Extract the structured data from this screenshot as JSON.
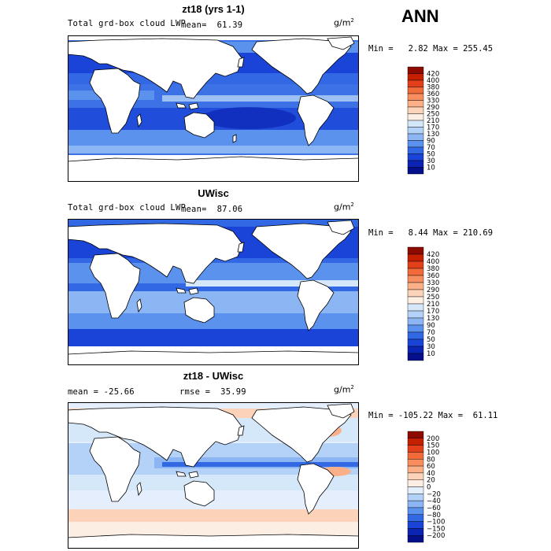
{
  "season": "ANN",
  "units": {
    "base": "g/m",
    "exp": "2"
  },
  "panels": [
    {
      "id": "model",
      "title": "zt18 (yrs 1-1)",
      "left_text": "Total grd-box cloud LWP",
      "mean_text": "mean=  61.39",
      "minmax_text": "Min =   2.82 Max = 255.45",
      "levels": [
        "420",
        "400",
        "380",
        "360",
        "330",
        "290",
        "250",
        "210",
        "170",
        "130",
        "90",
        "70",
        "50",
        "30",
        "10"
      ],
      "colors": [
        "#8c0a00",
        "#c42000",
        "#e2401a",
        "#f06a3a",
        "#f88e60",
        "#fbb08a",
        "#fcd2b8",
        "#fdeee4",
        "#d4e8fa",
        "#b4d2f7",
        "#8bb6f3",
        "#5b92ee",
        "#3368e5",
        "#1a44d8",
        "#0c24b4",
        "#04108a"
      ]
    },
    {
      "id": "obs",
      "title": "UWisc",
      "left_text": "Total grd-box cloud LWP",
      "mean_text": "mean=  87.06",
      "minmax_text": "Min =   8.44 Max = 210.69",
      "levels": [
        "420",
        "400",
        "380",
        "360",
        "330",
        "290",
        "250",
        "210",
        "170",
        "130",
        "90",
        "70",
        "50",
        "30",
        "10"
      ],
      "colors": [
        "#8c0a00",
        "#c42000",
        "#e2401a",
        "#f06a3a",
        "#f88e60",
        "#fbb08a",
        "#fcd2b8",
        "#fdeee4",
        "#d4e8fa",
        "#b4d2f7",
        "#8bb6f3",
        "#5b92ee",
        "#3368e5",
        "#1a44d8",
        "#0c24b4",
        "#04108a"
      ]
    },
    {
      "id": "diff",
      "title": "zt18 - UWisc",
      "left_text": "mean = -25.66",
      "mean_text": "rmse =  35.99",
      "minmax_text": "Min = -105.22 Max =  61.11",
      "levels": [
        "200",
        "150",
        "100",
        "80",
        "60",
        "40",
        "20",
        "0",
        "−20",
        "−40",
        "−60",
        "−80",
        "−100",
        "−150",
        "−200"
      ],
      "colors": [
        "#8c0a00",
        "#c42000",
        "#e2401a",
        "#f06a3a",
        "#f88e60",
        "#fbb08a",
        "#fcd2b8",
        "#fdeee4",
        "#e4eefc",
        "#b4d2f7",
        "#8bb6f3",
        "#5b92ee",
        "#3368e5",
        "#1a44d8",
        "#0c24b4",
        "#04108a"
      ]
    }
  ]
}
